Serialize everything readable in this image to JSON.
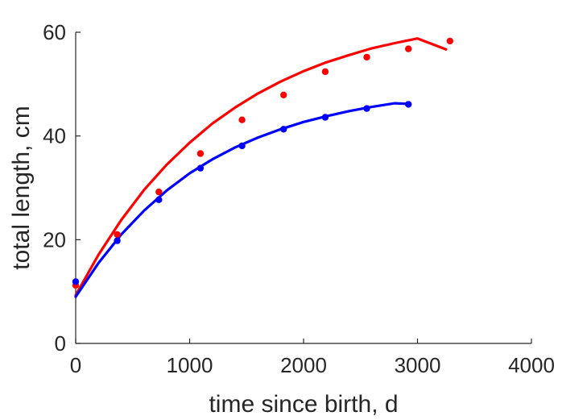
{
  "chart_data": {
    "type": "scatter",
    "title": "",
    "xlabel": "time since birth, d",
    "ylabel": "total length, cm",
    "xlim": [
      0,
      4000
    ],
    "ylim": [
      0,
      60
    ],
    "xticks": [
      0,
      1000,
      2000,
      3000,
      4000
    ],
    "yticks": [
      0,
      20,
      40,
      60
    ],
    "xtick_labels": [
      "0",
      "1000",
      "2000",
      "3000",
      "4000"
    ],
    "ytick_labels": [
      "0",
      "20",
      "40",
      "60"
    ],
    "grid": false,
    "legend": "none",
    "series": [
      {
        "color": "#ff0000",
        "points": {
          "x": [
            0,
            365,
            730,
            1095,
            1460,
            1825,
            2190,
            2555,
            2920,
            3285
          ],
          "y": [
            11.2,
            21.0,
            29.2,
            36.6,
            43.1,
            47.9,
            52.4,
            55.2,
            56.8,
            58.3
          ]
        },
        "fit": {
          "x": [
            0,
            200,
            400,
            600,
            800,
            1000,
            1200,
            1400,
            1600,
            1800,
            2000,
            2200,
            2400,
            2600,
            2800,
            3000,
            3250
          ],
          "y": [
            9.3,
            17.1,
            23.8,
            29.6,
            34.5,
            38.7,
            42.4,
            45.5,
            48.2,
            50.5,
            52.5,
            54.2,
            55.6,
            56.9,
            57.9,
            58.8,
            56.7
          ]
        }
      },
      {
        "color": "#0000ff",
        "points": {
          "x": [
            0,
            365,
            730,
            1095,
            1460,
            1825,
            2190,
            2555,
            2920
          ],
          "y": [
            11.9,
            19.8,
            27.7,
            33.8,
            38.1,
            41.3,
            43.6,
            45.3,
            46.1
          ]
        },
        "fit": {
          "x": [
            0,
            200,
            400,
            600,
            800,
            1000,
            1200,
            1400,
            1600,
            1800,
            2000,
            2200,
            2400,
            2600,
            2800,
            2920
          ],
          "y": [
            9.0,
            15.5,
            21.0,
            25.6,
            29.5,
            32.8,
            35.5,
            37.8,
            39.7,
            41.3,
            42.7,
            43.8,
            44.8,
            45.6,
            46.3,
            46.2
          ]
        }
      }
    ]
  }
}
